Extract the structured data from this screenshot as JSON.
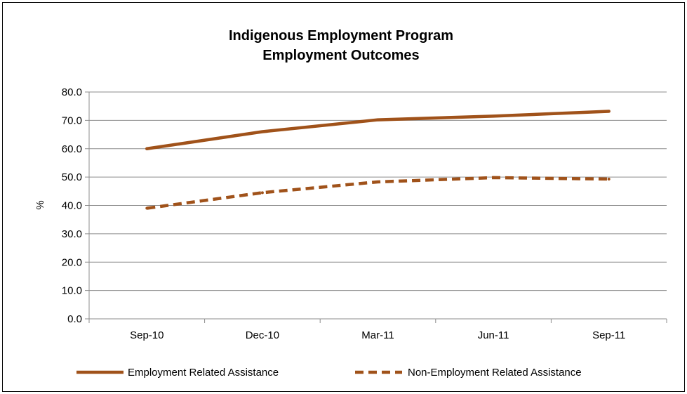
{
  "chart_data": {
    "type": "line",
    "title": "Indigenous Employment Program",
    "subtitle": "Employment Outcomes",
    "xlabel": "",
    "ylabel": "%",
    "categories": [
      "Sep-10",
      "Dec-10",
      "Mar-11",
      "Jun-11",
      "Sep-11"
    ],
    "ylim": [
      0,
      80
    ],
    "yticks": [
      "0.0",
      "10.0",
      "20.0",
      "30.0",
      "40.0",
      "50.0",
      "60.0",
      "70.0",
      "80.0"
    ],
    "grid": true,
    "legend_position": "bottom",
    "series": [
      {
        "name": "Employment Related Assistance",
        "values": [
          60.0,
          66.0,
          70.2,
          71.5,
          73.2
        ],
        "style": "solid",
        "color": "#a0521a"
      },
      {
        "name": "Non-Employment Related Assistance",
        "values": [
          39.0,
          44.5,
          48.3,
          49.8,
          49.3
        ],
        "style": "dashed",
        "color": "#a0521a"
      }
    ]
  }
}
